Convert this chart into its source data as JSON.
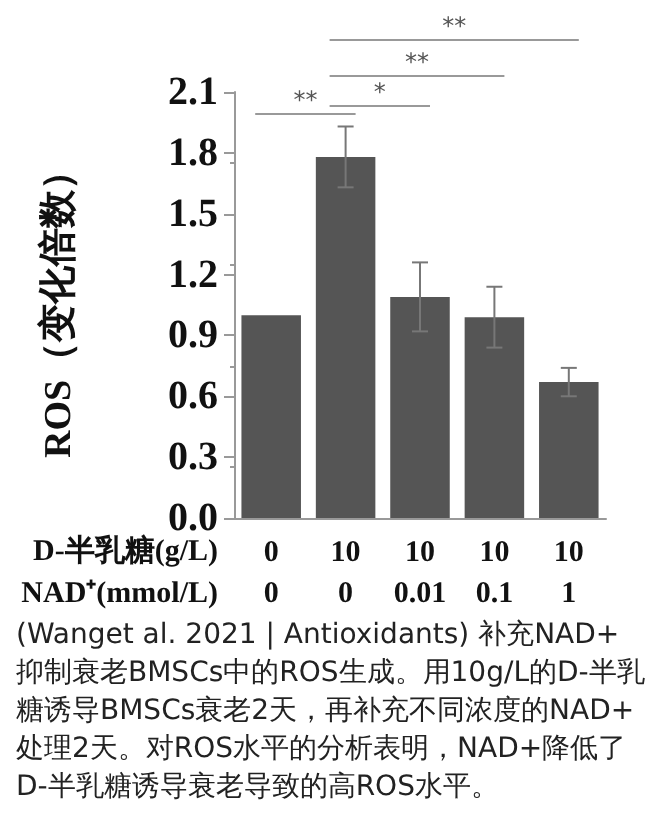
{
  "chart_data": {
    "type": "bar",
    "ylabel": "ROS（变化倍数）",
    "categories": [
      "0",
      "10",
      "10",
      "10",
      "10"
    ],
    "values": [
      1.0,
      1.78,
      1.09,
      0.99,
      0.67
    ],
    "errors": [
      null,
      0.15,
      0.17,
      0.15,
      0.07
    ],
    "color": "#555555",
    "ylim": [
      0,
      2.1
    ],
    "yticks": [
      {
        "value": 0,
        "label": "0.0"
      },
      {
        "value": 0.3,
        "label": "0.3"
      },
      {
        "value": 0.6,
        "label": "0.6"
      },
      {
        "value": 0.9,
        "label": "0.9"
      },
      {
        "value": 1.2,
        "label": "1.2"
      },
      {
        "value": 1.5,
        "label": "1.5"
      },
      {
        "value": 1.8,
        "label": "1.8"
      },
      {
        "value": 2.1,
        "label": "2.1"
      }
    ],
    "grid": false,
    "annotations": [
      "D-半乳糖(g/L)",
      "NAD⁺(mmol/L)",
      "0",
      "0",
      "0.01",
      "0.1",
      "1",
      "**",
      "*",
      "**",
      "**",
      "(Wanget al. 2021 | Antioxidants) 补充NAD+抑制衰老BMSCs中的ROS生成。用10g/L的D-半乳糖诱导BMSCs衰老2天，再补充不同浓度的NAD+处理2天。对ROS水平的分析表明，NAD+降低了D-半乳糖诱导衰老导致的高ROS水平。"
    ]
  }
}
